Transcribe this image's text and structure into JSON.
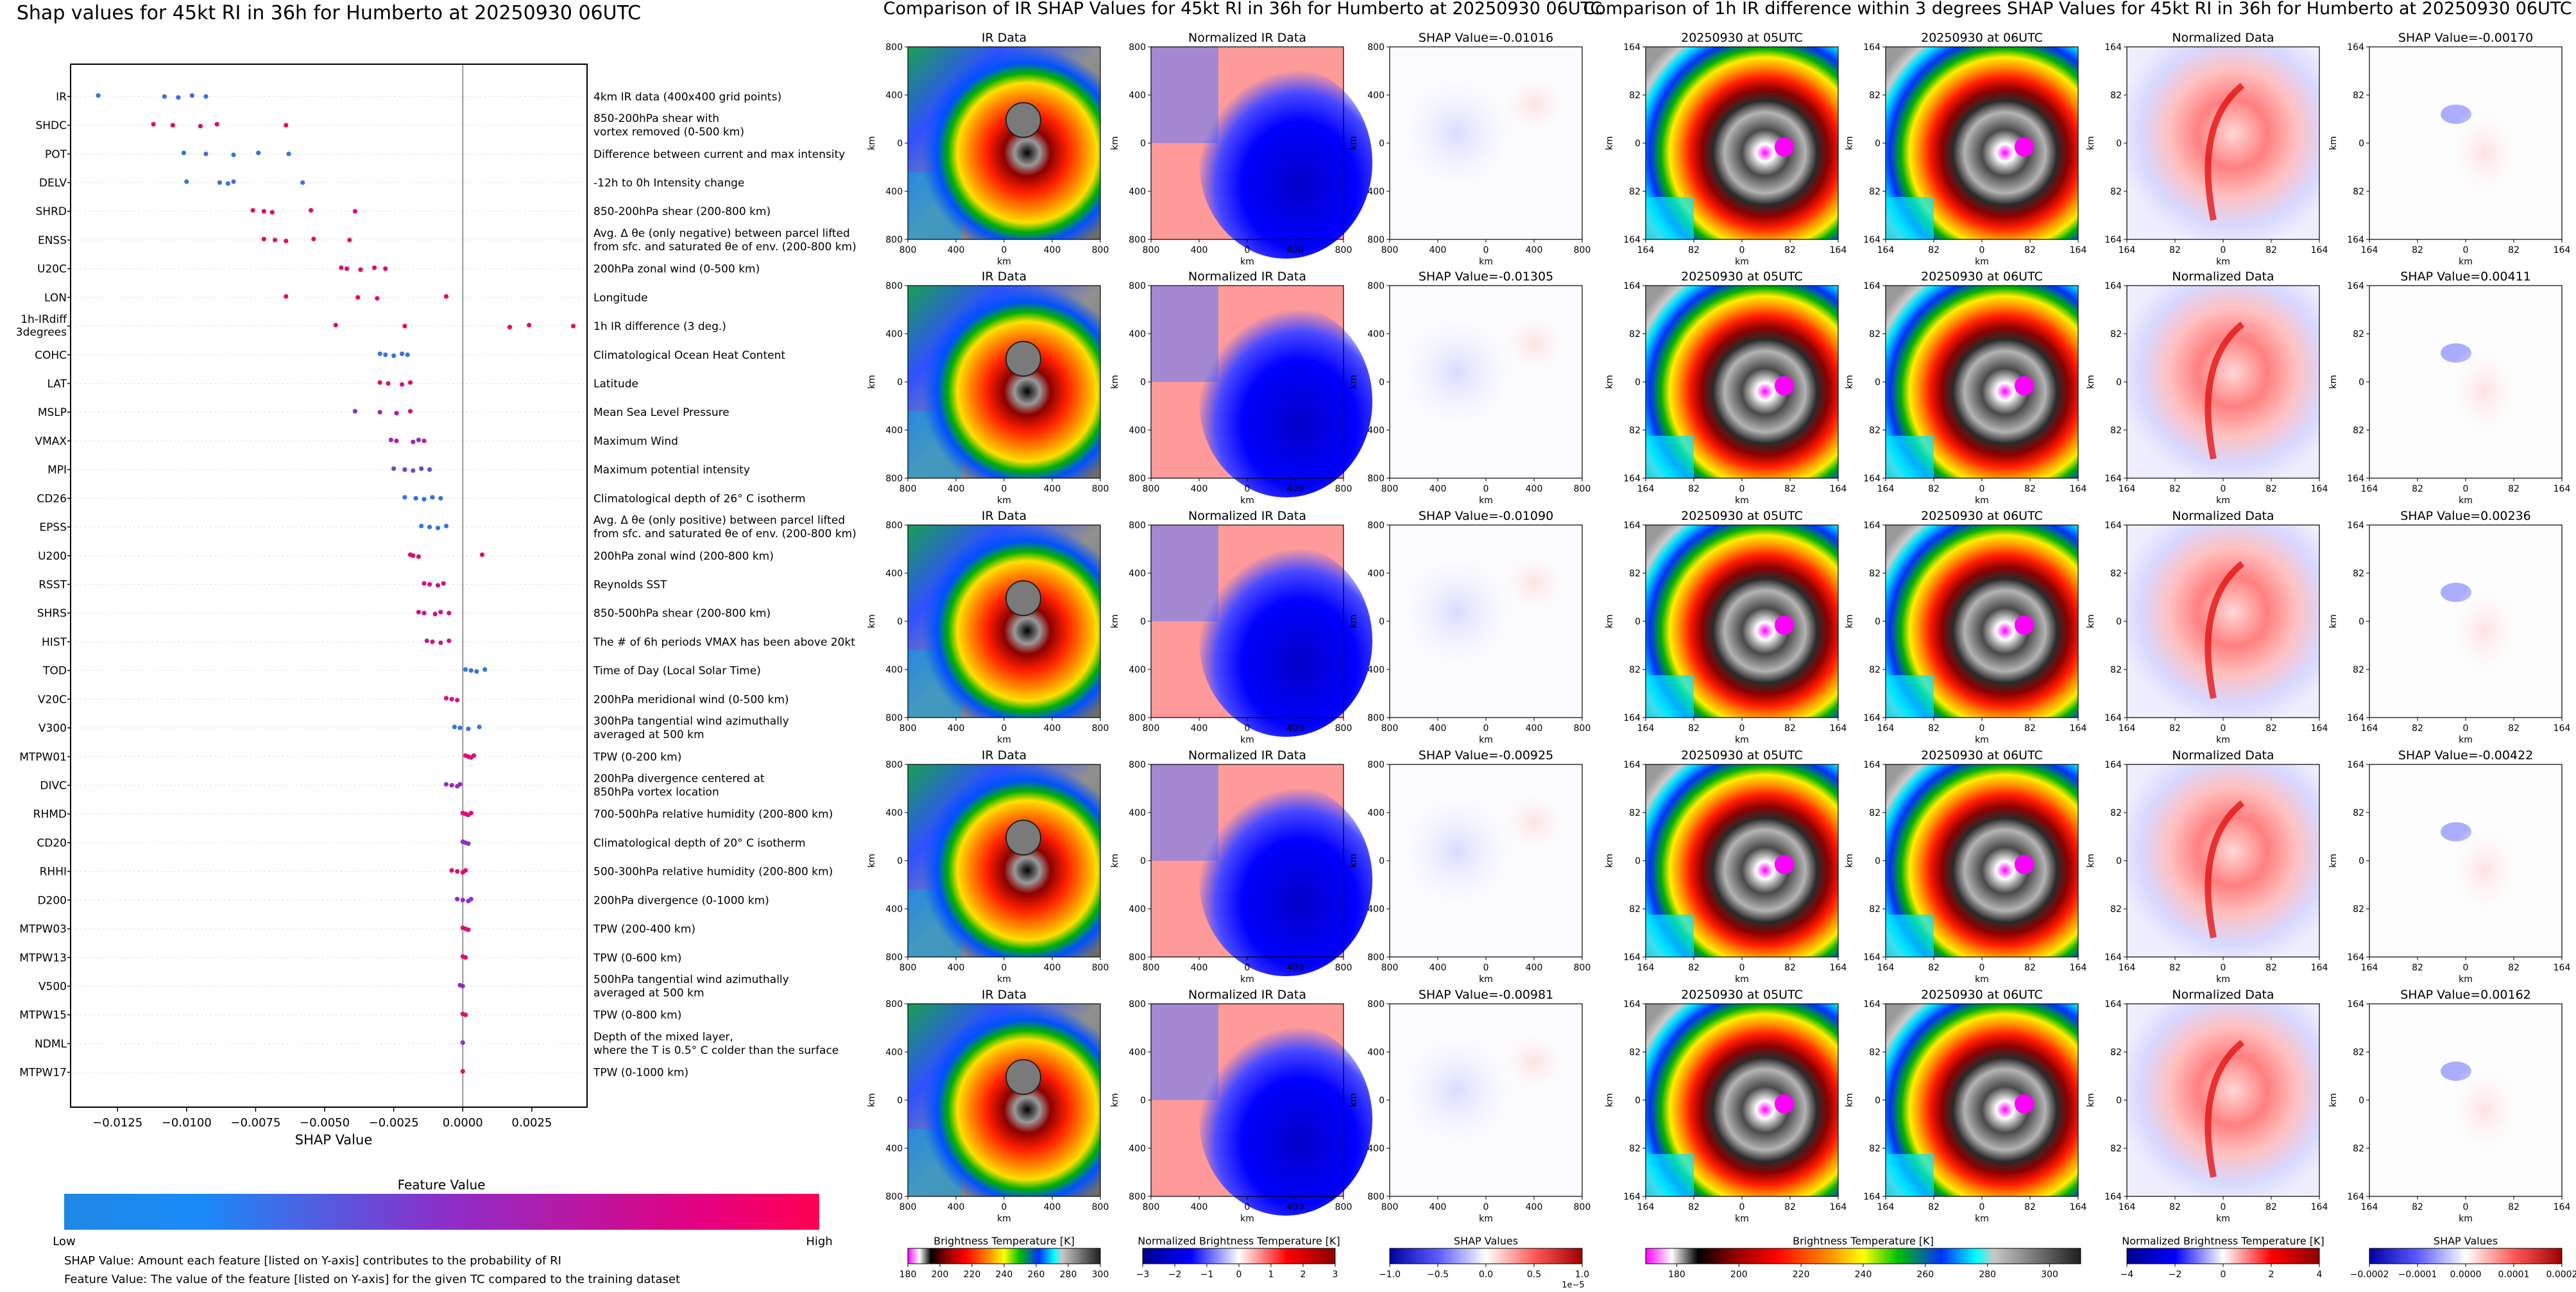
{
  "shap_summary": {
    "title": "Shap values for 45kt RI in 36h for Humberto at 20250930 06UTC",
    "xlabel": "SHAP Value",
    "colorbar_title": "Feature Value",
    "colorbar_low": "Low",
    "colorbar_high": "High",
    "note1": "SHAP Value: Amount each feature [listed on Y-axis] contributes to the probability of RI",
    "note2": "Feature Value: The value of the feature [listed on Y-axis] for the given TC compared to the training dataset",
    "colors": {
      "low": "#1e88e5",
      "mid": "#8b2fc9",
      "high": "#ff0052"
    }
  },
  "ir_section": {
    "title": "Comparison of IR SHAP Values for 45kt RI in 36h for Humberto at 20250930 06UTC",
    "panel_titles": [
      "IR Data",
      "Normalized IR Data"
    ],
    "shap_titles": [
      "SHAP Value=-0.01016",
      "SHAP Value=-0.01305",
      "SHAP Value=-0.01090",
      "SHAP Value=-0.00925",
      "SHAP Value=-0.00981"
    ],
    "ticks": [
      "800",
      "400",
      "0",
      "400",
      "800"
    ],
    "axis_label": "km",
    "colorbars": [
      {
        "label": "Brightness Temperature [K]",
        "ticks": [
          "180",
          "200",
          "220",
          "240",
          "260",
          "280",
          "300"
        ]
      },
      {
        "label": "Normalized Brightness Temperature [K]",
        "ticks": [
          "−3",
          "−2",
          "−1",
          "0",
          "1",
          "2",
          "3"
        ]
      },
      {
        "label": "SHAP Values",
        "ticks": [
          "−1.0",
          "−0.5",
          "0.0",
          "0.5",
          "1.0"
        ],
        "exponent": "1e−5"
      }
    ]
  },
  "diff_section": {
    "title": "Comparison of 1h IR difference within 3 degrees SHAP Values for 45kt RI in 36h for Humberto at 20250930 06UTC",
    "panel_titles": [
      "20250930 at 05UTC",
      "20250930 at 06UTC",
      "Normalized Data"
    ],
    "shap_titles": [
      "SHAP Value=-0.00170",
      "SHAP Value=0.00411",
      "SHAP Value=0.00236",
      "SHAP Value=-0.00422",
      "SHAP Value=0.00162"
    ],
    "ticks": [
      "164",
      "82",
      "0",
      "82",
      "164"
    ],
    "axis_label": "km",
    "colorbars": [
      {
        "label": "Brightness Temperature [K]",
        "ticks": [
          "180",
          "200",
          "220",
          "240",
          "260",
          "280",
          "300"
        ]
      },
      {
        "label": "Normalized Brightness Temperature [K]",
        "ticks": [
          "−4",
          "−2",
          "0",
          "2",
          "4"
        ]
      },
      {
        "label": "SHAP Values",
        "ticks": [
          "−0.0002",
          "−0.0001",
          "0.0000",
          "0.0001",
          "0.0002"
        ]
      }
    ]
  },
  "chart_data": {
    "type": "scatter",
    "subtype": "shap-beeswarm",
    "title": "Shap values for 45kt RI in 36h for Humberto at 20250930 06UTC",
    "xlabel": "SHAP Value",
    "ylabel": "",
    "xlim": [
      -0.0142,
      0.0045
    ],
    "xticks": [
      "−0.0125",
      "−0.0100",
      "−0.0075",
      "−0.0050",
      "−0.0025",
      "0.0000",
      "0.0025"
    ],
    "xtick_values": [
      -0.0125,
      -0.01,
      -0.0075,
      -0.005,
      -0.0025,
      0.0,
      0.0025
    ],
    "color_scale": "feature value (low = blue, high = magenta)",
    "features": [
      {
        "name": "IR",
        "desc": "4km IR data (400x400 grid points)",
        "points": [
          [
            -0.0132,
            0.1
          ],
          [
            -0.0108,
            0.1
          ],
          [
            -0.0103,
            0.15
          ],
          [
            -0.0098,
            0.15
          ],
          [
            -0.0093,
            0.1
          ]
        ]
      },
      {
        "name": "SHDC",
        "desc": "850-200hPa shear with\nvortex removed (0-500 km)",
        "points": [
          [
            -0.0112,
            0.9
          ],
          [
            -0.0105,
            0.95
          ],
          [
            -0.0095,
            0.85
          ],
          [
            -0.0089,
            0.9
          ],
          [
            -0.0064,
            0.95
          ]
        ]
      },
      {
        "name": "POT",
        "desc": "Difference between current and max intensity",
        "points": [
          [
            -0.0101,
            0.1
          ],
          [
            -0.0093,
            0.15
          ],
          [
            -0.0083,
            0.1
          ],
          [
            -0.0074,
            0.1
          ],
          [
            -0.0063,
            0.1
          ]
        ]
      },
      {
        "name": "DELV",
        "desc": "-12h to 0h Intensity change",
        "points": [
          [
            -0.01,
            0.1
          ],
          [
            -0.0088,
            0.15
          ],
          [
            -0.0085,
            0.1
          ],
          [
            -0.0083,
            0.15
          ],
          [
            -0.0058,
            0.1
          ]
        ]
      },
      {
        "name": "SHRD",
        "desc": "850-200hPa shear (200-800 km)",
        "points": [
          [
            -0.0076,
            0.9
          ],
          [
            -0.0072,
            0.85
          ],
          [
            -0.0069,
            0.9
          ],
          [
            -0.0055,
            0.9
          ],
          [
            -0.0039,
            0.85
          ]
        ]
      },
      {
        "name": "ENSS",
        "desc": "Avg. Δ θe (only negative) between parcel lifted\nfrom sfc. and saturated θe of env. (200-800 km)",
        "points": [
          [
            -0.0072,
            0.9
          ],
          [
            -0.0068,
            0.85
          ],
          [
            -0.0064,
            0.9
          ],
          [
            -0.0054,
            0.95
          ],
          [
            -0.0041,
            0.9
          ]
        ]
      },
      {
        "name": "U20C",
        "desc": "200hPa zonal wind (0-500 km)",
        "points": [
          [
            -0.0044,
            0.9
          ],
          [
            -0.0042,
            0.85
          ],
          [
            -0.0037,
            0.9
          ],
          [
            -0.0032,
            0.9
          ],
          [
            -0.0028,
            0.9
          ]
        ]
      },
      {
        "name": "LON",
        "desc": "Longitude",
        "points": [
          [
            -0.0064,
            0.9
          ],
          [
            -0.0038,
            0.9
          ],
          [
            -0.0031,
            0.85
          ],
          [
            -0.0006,
            0.9
          ]
        ]
      },
      {
        "name": "1h-IRdiff\n3degrees",
        "desc": "1h IR difference (3 deg.)",
        "points": [
          [
            -0.0046,
            0.9
          ],
          [
            -0.0021,
            0.9
          ],
          [
            0.0017,
            0.95
          ],
          [
            0.0024,
            0.9
          ],
          [
            0.004,
            0.95
          ]
        ]
      },
      {
        "name": "COHC",
        "desc": "Climatological Ocean Heat Content",
        "points": [
          [
            -0.003,
            0.1
          ],
          [
            -0.0028,
            0.1
          ],
          [
            -0.0025,
            0.1
          ],
          [
            -0.0022,
            0.15
          ],
          [
            -0.002,
            0.1
          ]
        ]
      },
      {
        "name": "LAT",
        "desc": "Latitude",
        "points": [
          [
            -0.003,
            0.9
          ],
          [
            -0.0027,
            0.85
          ],
          [
            -0.0022,
            0.8
          ],
          [
            -0.0019,
            0.9
          ]
        ]
      },
      {
        "name": "MSLP",
        "desc": "Mean Sea Level Pressure",
        "points": [
          [
            -0.0039,
            0.5
          ],
          [
            -0.003,
            0.6
          ],
          [
            -0.0024,
            0.7
          ],
          [
            -0.0019,
            0.8
          ]
        ]
      },
      {
        "name": "VMAX",
        "desc": "Maximum Wind",
        "points": [
          [
            -0.0026,
            0.6
          ],
          [
            -0.0024,
            0.7
          ],
          [
            -0.0018,
            0.6
          ],
          [
            -0.0016,
            0.5
          ],
          [
            -0.0014,
            0.7
          ]
        ]
      },
      {
        "name": "MPI",
        "desc": "Maximum potential intensity",
        "points": [
          [
            -0.0025,
            0.35
          ],
          [
            -0.0021,
            0.4
          ],
          [
            -0.0018,
            0.35
          ],
          [
            -0.0015,
            0.4
          ],
          [
            -0.0012,
            0.3
          ]
        ]
      },
      {
        "name": "CD26",
        "desc": "Climatological depth of 26° C isotherm",
        "points": [
          [
            -0.0021,
            0.1
          ],
          [
            -0.0017,
            0.15
          ],
          [
            -0.0014,
            0.1
          ],
          [
            -0.0011,
            0.15
          ],
          [
            -0.0008,
            0.1
          ]
        ]
      },
      {
        "name": "EPSS",
        "desc": "Avg. Δ θe (only positive) between parcel lifted\nfrom sfc. and saturated θe of env. (200-800 km)",
        "points": [
          [
            -0.0015,
            0.1
          ],
          [
            -0.0012,
            0.15
          ],
          [
            -0.0009,
            0.1
          ],
          [
            -0.0006,
            0.1
          ]
        ]
      },
      {
        "name": "U200",
        "desc": "200hPa zonal wind (200-800 km)",
        "points": [
          [
            -0.0019,
            0.9
          ],
          [
            -0.0018,
            0.85
          ],
          [
            -0.0016,
            0.9
          ],
          [
            0.0007,
            0.9
          ]
        ]
      },
      {
        "name": "RSST",
        "desc": "Reynolds SST",
        "points": [
          [
            -0.0014,
            0.8
          ],
          [
            -0.0012,
            0.85
          ],
          [
            -0.0009,
            0.8
          ],
          [
            -0.0007,
            0.8
          ]
        ]
      },
      {
        "name": "SHRS",
        "desc": "850-500hPa shear (200-800 km)",
        "points": [
          [
            -0.0016,
            0.8
          ],
          [
            -0.0014,
            0.75
          ],
          [
            -0.001,
            0.85
          ],
          [
            -0.0008,
            0.8
          ],
          [
            -0.0005,
            0.75
          ]
        ]
      },
      {
        "name": "HIST",
        "desc": "The # of 6h periods VMAX has been above 20kt",
        "points": [
          [
            -0.0013,
            0.7
          ],
          [
            -0.0011,
            0.8
          ],
          [
            -0.0008,
            0.75
          ],
          [
            -0.0005,
            0.8
          ]
        ]
      },
      {
        "name": "TOD",
        "desc": "Time of Day (Local Solar Time)",
        "points": [
          [
            0.0001,
            0.1
          ],
          [
            0.0003,
            0.15
          ],
          [
            0.0005,
            0.1
          ],
          [
            0.0008,
            0.1
          ]
        ]
      },
      {
        "name": "V20C",
        "desc": "200hPa meridional wind (0-500 km)",
        "points": [
          [
            -0.0006,
            0.8
          ],
          [
            -0.0004,
            0.75
          ],
          [
            -0.0002,
            0.8
          ]
        ]
      },
      {
        "name": "V300",
        "desc": "300hPa tangential wind azimuthally\naveraged at 500 km",
        "points": [
          [
            -0.0003,
            0.1
          ],
          [
            -0.0001,
            0.15
          ],
          [
            0.0002,
            0.1
          ],
          [
            0.0006,
            0.1
          ]
        ]
      },
      {
        "name": "MTPW01",
        "desc": "TPW (0-200 km)",
        "points": [
          [
            0.0001,
            0.9
          ],
          [
            0.0002,
            0.85
          ],
          [
            0.0003,
            0.9
          ],
          [
            0.0004,
            0.85
          ]
        ]
      },
      {
        "name": "DIVC",
        "desc": "200hPa divergence centered at\n850hPa vortex location",
        "points": [
          [
            -0.0006,
            0.5
          ],
          [
            -0.0004,
            0.6
          ],
          [
            -0.0002,
            0.5
          ],
          [
            -0.0001,
            0.55
          ]
        ]
      },
      {
        "name": "RHMD",
        "desc": "700-500hPa relative humidity (200-800 km)",
        "points": [
          [
            0.0,
            0.85
          ],
          [
            0.0001,
            0.9
          ],
          [
            0.0002,
            0.85
          ],
          [
            0.0003,
            0.9
          ]
        ]
      },
      {
        "name": "CD20",
        "desc": "Climatological depth of 20° C isotherm",
        "points": [
          [
            0.0,
            0.5
          ],
          [
            0.0001,
            0.55
          ],
          [
            0.0002,
            0.5
          ]
        ]
      },
      {
        "name": "RHHI",
        "desc": "500-300hPa relative humidity (200-800 km)",
        "points": [
          [
            -0.0004,
            0.9
          ],
          [
            -0.0002,
            0.85
          ],
          [
            0.0,
            0.9
          ],
          [
            0.0001,
            0.85
          ]
        ]
      },
      {
        "name": "D200",
        "desc": "200hPa divergence (0-1000 km)",
        "points": [
          [
            -0.0002,
            0.5
          ],
          [
            0.0,
            0.55
          ],
          [
            0.0002,
            0.5
          ],
          [
            0.0003,
            0.45
          ]
        ]
      },
      {
        "name": "MTPW03",
        "desc": "TPW (200-400 km)",
        "points": [
          [
            0.0,
            0.85
          ],
          [
            0.0001,
            0.9
          ],
          [
            0.0002,
            0.85
          ]
        ]
      },
      {
        "name": "MTPW13",
        "desc": "TPW (0-600 km)",
        "points": [
          [
            0.0,
            0.85
          ],
          [
            0.0001,
            0.9
          ]
        ]
      },
      {
        "name": "V500",
        "desc": "500hPa tangential wind azimuthally\naveraged at 500 km",
        "points": [
          [
            -0.0001,
            0.5
          ],
          [
            0.0,
            0.55
          ]
        ]
      },
      {
        "name": "MTPW15",
        "desc": "TPW (0-800 km)",
        "points": [
          [
            0.0,
            0.85
          ],
          [
            0.0001,
            0.9
          ]
        ]
      },
      {
        "name": "NDML",
        "desc": "Depth of the mixed layer,\nwhere the T is 0.5° C colder than the surface",
        "points": [
          [
            0.0,
            0.5
          ]
        ]
      },
      {
        "name": "MTPW17",
        "desc": "TPW (0-1000 km)",
        "points": [
          [
            0.0,
            0.85
          ]
        ]
      }
    ]
  }
}
